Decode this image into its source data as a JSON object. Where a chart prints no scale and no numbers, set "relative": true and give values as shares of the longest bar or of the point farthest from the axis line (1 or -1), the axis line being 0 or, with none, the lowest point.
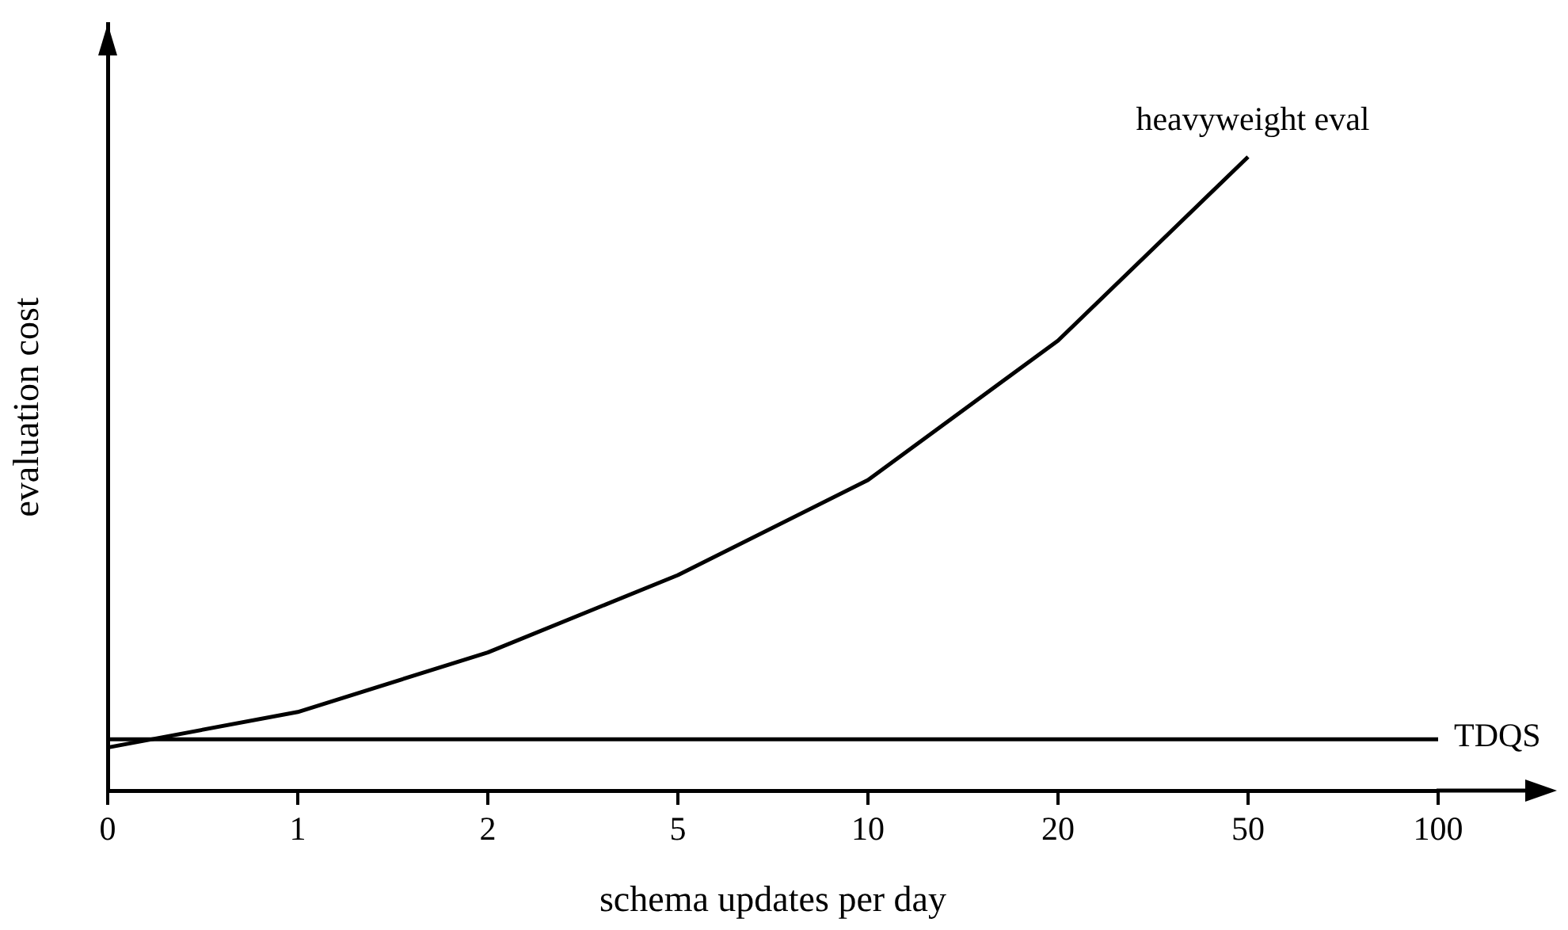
{
  "chart_data": {
    "type": "line",
    "xlabel": "schema updates per day",
    "ylabel": "evaluation cost",
    "relative": true,
    "categories": [
      "0",
      "1",
      "2",
      "5",
      "10",
      "20",
      "50",
      "100"
    ],
    "series": [
      {
        "name": "heavyweight eval",
        "color": "#000000",
        "values": [
          0.068,
          0.124,
          0.218,
          0.34,
          0.49,
          0.71,
          1,
          null
        ]
      },
      {
        "name": "TDQS",
        "color": "#000000",
        "values": [
          0.081,
          0.081,
          0.081,
          0.081,
          0.081,
          0.081,
          0.081,
          0.081
        ]
      }
    ],
    "legend": false,
    "grid": false,
    "marker": "none",
    "line_style": "solid"
  }
}
